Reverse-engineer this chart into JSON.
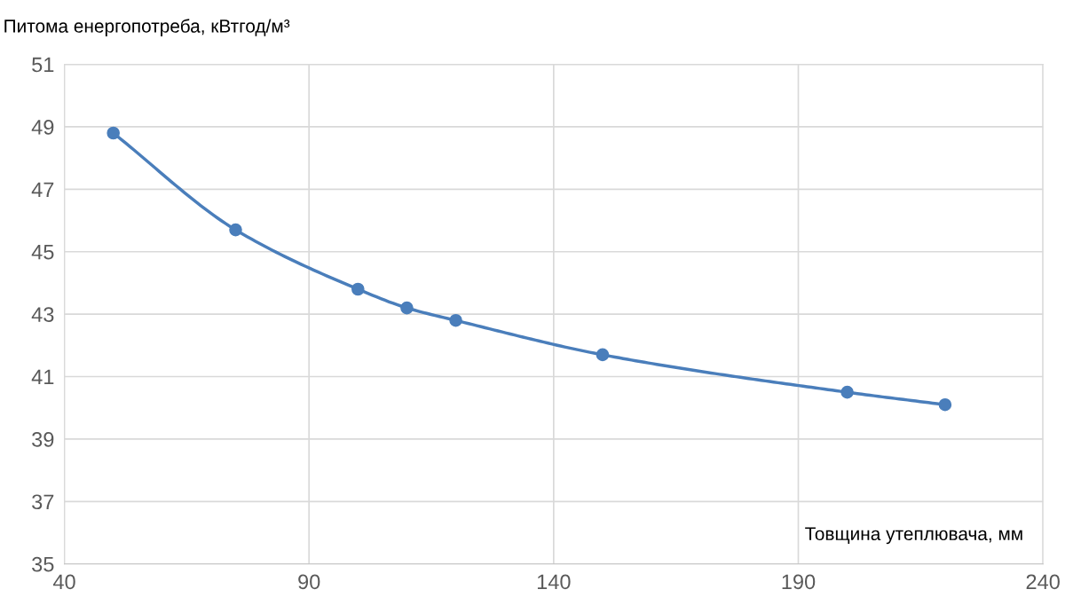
{
  "chart_data": {
    "type": "line",
    "xlabel": "Товщина утеплювача, мм",
    "ylabel": "Питома енергопотреба, кВтгод/м³",
    "x": [
      50,
      75,
      100,
      110,
      120,
      150,
      200,
      220
    ],
    "series": [
      {
        "color": "#4a7ebb",
        "values": [
          48.8,
          45.7,
          43.8,
          43.2,
          42.8,
          41.7,
          40.5,
          40.1
        ]
      }
    ],
    "xlim": [
      40,
      240
    ],
    "xticks": [
      40,
      90,
      140,
      190,
      240
    ],
    "ylim": [
      35,
      51
    ],
    "yticks": [
      35,
      37,
      39,
      41,
      43,
      45,
      47,
      49,
      51
    ],
    "grid": true,
    "marker": "circle",
    "line_style": "solid"
  }
}
